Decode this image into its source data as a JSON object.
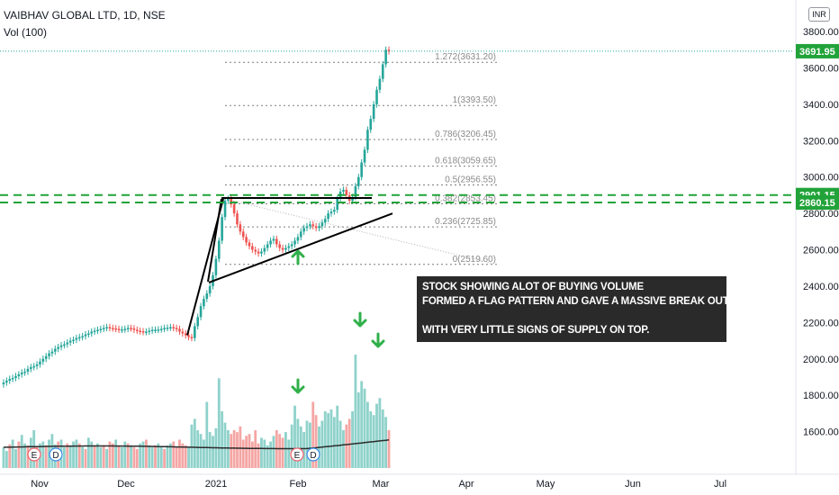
{
  "header": {
    "title": "VAIBHAV GLOBAL LTD, 1D, NSE",
    "volume_label": "Vol (100)",
    "scale_badge": "INR"
  },
  "annotation": {
    "lines": [
      "STOCK SHOWING ALOT OF BUYING VOLUME",
      "FORMED A FLAG PATTERN AND GAVE A MASSIVE BREAK OUT.",
      "",
      "WITH VERY LITTLE SIGNS OF SUPPLY ON TOP."
    ]
  },
  "colors": {
    "up": "#26a69a",
    "down": "#ef5350",
    "vol_up": "#8fd2cb",
    "vol_down": "#f4a6a4",
    "level": "#21a339",
    "last_price": "#26a69a",
    "annotation_bg": "#2a2a2a",
    "arrow": "#2fb04a"
  },
  "chart_data": {
    "type": "candlestick",
    "symbol": "VAIBHAV GLOBAL LTD",
    "interval": "1D",
    "exchange": "NSE",
    "x_ticks": [
      "Nov",
      "Dec",
      "2021",
      "Feb",
      "Mar",
      "Apr",
      "May",
      "Jun",
      "Jul"
    ],
    "y_ticks": [
      "1600.00",
      "1800.00",
      "2000.00",
      "2200.00",
      "2400.00",
      "2600.00",
      "2800.00",
      "3000.00",
      "3200.00",
      "3400.00",
      "3600.00",
      "3800.00"
    ],
    "ylim": [
      1400,
      3850
    ],
    "last_price": {
      "value": 3691.95,
      "label": "3691.95"
    },
    "horizontal_levels": [
      {
        "value": 2901.15,
        "label": "2901.15"
      },
      {
        "value": 2860.15,
        "label": "2860.15"
      }
    ],
    "fibonacci": [
      {
        "label": "1.272(3631.20)",
        "value": 3631.2
      },
      {
        "label": "1(3393.50)",
        "value": 3393.5
      },
      {
        "label": "0.786(3206.45)",
        "value": 3206.45
      },
      {
        "label": "0.618(3059.65)",
        "value": 3059.65
      },
      {
        "label": "0.5(2956.55)",
        "value": 2956.55
      },
      {
        "label": "0.382(2853.45)",
        "value": 2853.45
      },
      {
        "label": "0.236(2725.85)",
        "value": 2725.85
      },
      {
        "label": "0(2519.60)",
        "value": 2519.6
      }
    ],
    "volume_average": "Vol (100)",
    "close_series": [
      1870,
      1880,
      1890,
      1895,
      1905,
      1915,
      1925,
      1930,
      1945,
      1955,
      1960,
      1970,
      1985,
      2000,
      2015,
      2030,
      2040,
      2055,
      2065,
      2075,
      2080,
      2090,
      2100,
      2105,
      2115,
      2120,
      2125,
      2135,
      2140,
      2150,
      2155,
      2160,
      2165,
      2170,
      2175,
      2170,
      2168,
      2165,
      2160,
      2162,
      2165,
      2170,
      2168,
      2160,
      2155,
      2152,
      2148,
      2150,
      2155,
      2160,
      2160,
      2162,
      2165,
      2170,
      2172,
      2175,
      2170,
      2165,
      2150,
      2140,
      2130,
      2120,
      2115,
      2180,
      2230,
      2290,
      2330,
      2360,
      2400,
      2460,
      2550,
      2650,
      2780,
      2870,
      2880,
      2850,
      2800,
      2740,
      2700,
      2670,
      2640,
      2620,
      2600,
      2590,
      2580,
      2590,
      2610,
      2630,
      2650,
      2660,
      2630,
      2610,
      2600,
      2610,
      2620,
      2630,
      2650,
      2670,
      2700,
      2720,
      2730,
      2740,
      2730,
      2720,
      2730,
      2750,
      2770,
      2800,
      2810,
      2820,
      2880,
      2920,
      2930,
      2900,
      2870,
      2890,
      2950,
      3000,
      3080,
      3150,
      3260,
      3320,
      3400,
      3480,
      3540,
      3620,
      3700,
      3691.95
    ],
    "volume_series": [
      22,
      18,
      25,
      30,
      20,
      28,
      35,
      26,
      24,
      32,
      40,
      22,
      26,
      28,
      24,
      30,
      36,
      25,
      28,
      30,
      22,
      26,
      24,
      28,
      30,
      26,
      22,
      20,
      32,
      28,
      24,
      26,
      22,
      24,
      20,
      28,
      26,
      30,
      24,
      22,
      28,
      26,
      24,
      22,
      20,
      26,
      28,
      30,
      24,
      22,
      24,
      26,
      22,
      20,
      24,
      26,
      28,
      22,
      30,
      26,
      24,
      22,
      46,
      52,
      40,
      36,
      30,
      70,
      38,
      34,
      42,
      95,
      60,
      48,
      40,
      36,
      40,
      38,
      44,
      30,
      34,
      36,
      28,
      40,
      26,
      32,
      30,
      24,
      28,
      34,
      40,
      36,
      32,
      38,
      30,
      46,
      66,
      52,
      44,
      38,
      50,
      48,
      70,
      56,
      44,
      50,
      60,
      58,
      62,
      54,
      66,
      50,
      40,
      46,
      52,
      60,
      120,
      80,
      92,
      84,
      70,
      60,
      56,
      68,
      74,
      62,
      54,
      40
    ],
    "volume_up": [
      1,
      1,
      0,
      1,
      1,
      0,
      1,
      1,
      0,
      1,
      1,
      0,
      1,
      1,
      0,
      1,
      1,
      1,
      0,
      1,
      1,
      0,
      1,
      1,
      1,
      0,
      1,
      0,
      1,
      1,
      0,
      1,
      1,
      0,
      1,
      0,
      0,
      1,
      0,
      1,
      1,
      0,
      1,
      0,
      0,
      1,
      1,
      0,
      1,
      1,
      0,
      1,
      1,
      0,
      1,
      1,
      0,
      0,
      0,
      0,
      0,
      1,
      1,
      1,
      1,
      1,
      1,
      1,
      1,
      1,
      1,
      1,
      1,
      1,
      1,
      0,
      0,
      0,
      0,
      0,
      0,
      0,
      0,
      0,
      0,
      1,
      1,
      1,
      1,
      1,
      0,
      0,
      0,
      1,
      1,
      1,
      1,
      1,
      1,
      1,
      1,
      1,
      0,
      0,
      1,
      1,
      1,
      1,
      1,
      1,
      1,
      1,
      1,
      0,
      0,
      1,
      1,
      1,
      1,
      1,
      1,
      1,
      1,
      1,
      1,
      1,
      1,
      0
    ]
  }
}
